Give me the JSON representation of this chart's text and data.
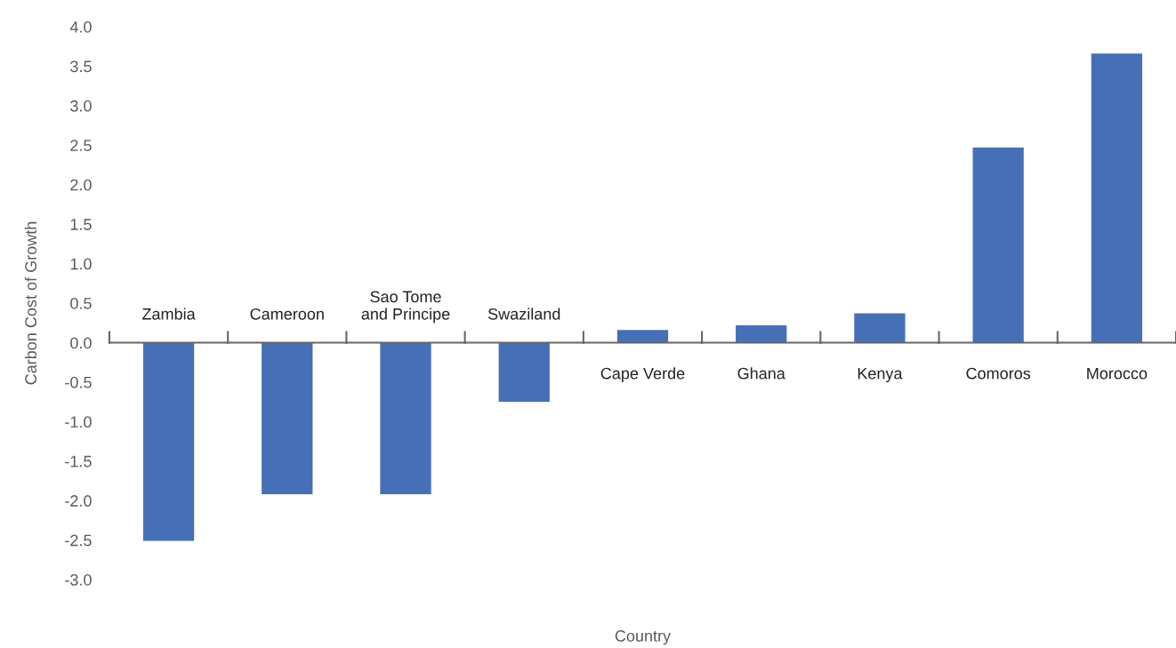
{
  "chart_data": {
    "type": "bar",
    "xlabel": "Country",
    "ylabel": "Carbon Cost of Growth",
    "categories": [
      "Zambia",
      "Cameroon",
      "Sao Tome\nand Principe",
      "Swaziland",
      "Cape Verde",
      "Ghana",
      "Kenya",
      "Comoros",
      "Morocco"
    ],
    "values": [
      -2.51,
      -1.92,
      -1.92,
      -0.75,
      0.16,
      0.22,
      0.37,
      2.47,
      3.66
    ],
    "color": "#4570b8",
    "ylim": [
      -3.0,
      4.0
    ],
    "yticks": [
      {
        "value": -3.0,
        "label": "-3.0"
      },
      {
        "value": -2.5,
        "label": "-2.5"
      },
      {
        "value": -2.0,
        "label": "-2.0"
      },
      {
        "value": -1.5,
        "label": "-1.5"
      },
      {
        "value": -1.0,
        "label": "-1.0"
      },
      {
        "value": -0.5,
        "label": "-0.5"
      },
      {
        "value": 0.0,
        "label": "0.0"
      },
      {
        "value": 0.5,
        "label": "0.5"
      },
      {
        "value": 1.0,
        "label": "1.0"
      },
      {
        "value": 1.5,
        "label": "1.5"
      },
      {
        "value": 2.0,
        "label": "2.0"
      },
      {
        "value": 2.5,
        "label": "2.5"
      },
      {
        "value": 3.0,
        "label": "3.0"
      },
      {
        "value": 3.5,
        "label": "3.5"
      },
      {
        "value": 4.0,
        "label": "4.0"
      }
    ],
    "grid": false
  }
}
